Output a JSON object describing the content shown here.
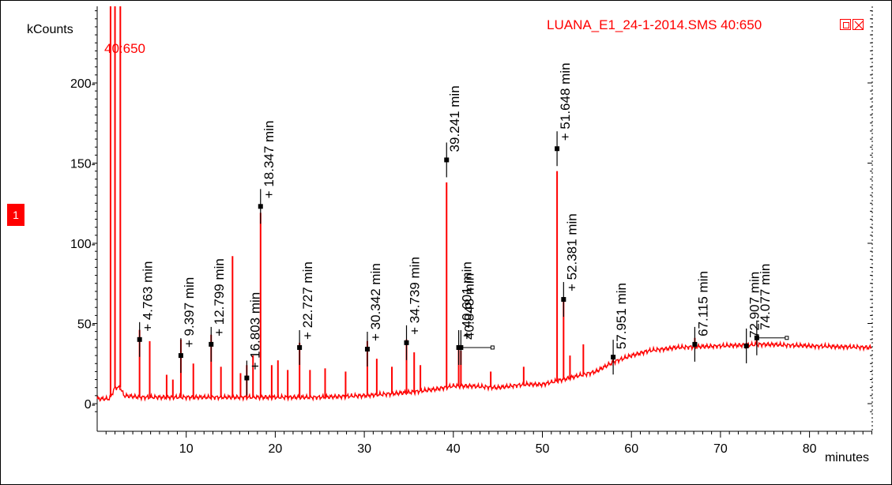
{
  "window": {
    "file_label": "LUANA_E1_24-1-2014.SMS 40:650",
    "trace_label": "40:650",
    "series_badge": "1",
    "restore_icon": "restore-icon",
    "close_icon": "close-icon"
  },
  "colors": {
    "trace": "#ff0000",
    "axis": "#000000",
    "background": "#ffffff"
  },
  "chart_data": {
    "type": "line",
    "title": "LUANA_E1_24-1-2014.SMS 40:650",
    "xlabel": "minutes",
    "ylabel": "kCounts",
    "xlim": [
      0,
      87
    ],
    "ylim": [
      -8,
      248
    ],
    "x_ticks": [
      10,
      20,
      30,
      40,
      50,
      60,
      70,
      80
    ],
    "y_ticks": [
      0,
      50,
      100,
      150,
      200
    ],
    "y_tick_labels": [
      "0-",
      "50-",
      "100-",
      "150-",
      "200-"
    ],
    "grid": false,
    "series": [
      {
        "name": "40:650",
        "color": "#ff0000",
        "baseline": [
          [
            0.0,
            3
          ],
          [
            1.3,
            3
          ],
          [
            1.5,
            4
          ],
          [
            2.0,
            10
          ],
          [
            2.6,
            10
          ],
          [
            3.0,
            5
          ],
          [
            5,
            4
          ],
          [
            10,
            4
          ],
          [
            15,
            4
          ],
          [
            20,
            4
          ],
          [
            25,
            4
          ],
          [
            30,
            5
          ],
          [
            35,
            7
          ],
          [
            38,
            9
          ],
          [
            40,
            11
          ],
          [
            42,
            11
          ],
          [
            45,
            10
          ],
          [
            48,
            12
          ],
          [
            50,
            12
          ],
          [
            53,
            16
          ],
          [
            56,
            20
          ],
          [
            58,
            26
          ],
          [
            60,
            30
          ],
          [
            62,
            33
          ],
          [
            65,
            35
          ],
          [
            70,
            36
          ],
          [
            75,
            37
          ],
          [
            80,
            36
          ],
          [
            87,
            35
          ]
        ],
        "spikes": [
          [
            1.5,
            248
          ],
          [
            2.0,
            248
          ],
          [
            2.6,
            248
          ],
          [
            4.76,
            46
          ],
          [
            5.9,
            39
          ],
          [
            7.8,
            18
          ],
          [
            8.5,
            15
          ],
          [
            9.4,
            40
          ],
          [
            10.8,
            25
          ],
          [
            12.8,
            43
          ],
          [
            13.9,
            23
          ],
          [
            15.2,
            92
          ],
          [
            16.1,
            19
          ],
          [
            16.8,
            24
          ],
          [
            17.5,
            30
          ],
          [
            18.35,
            119
          ],
          [
            19.6,
            24
          ],
          [
            20.3,
            27
          ],
          [
            21.4,
            21
          ],
          [
            22.73,
            38
          ],
          [
            23.9,
            21
          ],
          [
            25.6,
            22
          ],
          [
            27.9,
            20
          ],
          [
            30.34,
            39
          ],
          [
            31.4,
            28
          ],
          [
            33.1,
            23
          ],
          [
            34.74,
            40
          ],
          [
            35.6,
            32
          ],
          [
            36.3,
            24
          ],
          [
            39.24,
            138
          ],
          [
            40.6,
            36
          ],
          [
            40.85,
            33
          ],
          [
            44.2,
            20
          ],
          [
            47.9,
            23
          ],
          [
            51.65,
            145
          ],
          [
            52.38,
            65
          ],
          [
            53.1,
            30
          ],
          [
            54.6,
            37
          ],
          [
            57.95,
            29
          ],
          [
            67.12,
            41
          ],
          [
            72.91,
            38
          ],
          [
            74.08,
            40
          ]
        ]
      }
    ],
    "annotations": [
      {
        "x": 4.763,
        "label": "+ 4.763 min",
        "y": 40
      },
      {
        "x": 9.397,
        "label": "+ 9.397 min",
        "y": 30
      },
      {
        "x": 12.799,
        "label": "+ 12.799 min",
        "y": 37
      },
      {
        "x": 16.803,
        "label": "+ 16.803 min",
        "y": 16
      },
      {
        "x": 18.347,
        "label": "+ 18.347 min",
        "y": 123
      },
      {
        "x": 22.727,
        "label": "+ 22.727 min",
        "y": 35
      },
      {
        "x": 30.342,
        "label": "+ 30.342 min",
        "y": 34
      },
      {
        "x": 34.739,
        "label": "+ 34.739 min",
        "y": 38
      },
      {
        "x": 39.241,
        "label": "39.241 min",
        "y": 152
      },
      {
        "x": 40.601,
        "label": "+ 40.601 min",
        "y": 35
      },
      {
        "x": 40.848,
        "label": "40.848 min",
        "y": 35
      },
      {
        "x": 51.648,
        "label": "+ 51.648 min",
        "y": 159
      },
      {
        "x": 52.381,
        "label": "+ 52.381 min",
        "y": 65
      },
      {
        "x": 57.951,
        "label": "57.951 min",
        "y": 29
      },
      {
        "x": 67.115,
        "label": "67.115 min",
        "y": 37
      },
      {
        "x": 72.907,
        "label": "72.907 min",
        "y": 36
      },
      {
        "x": 74.077,
        "label": "74.077 min",
        "y": 41
      }
    ]
  }
}
